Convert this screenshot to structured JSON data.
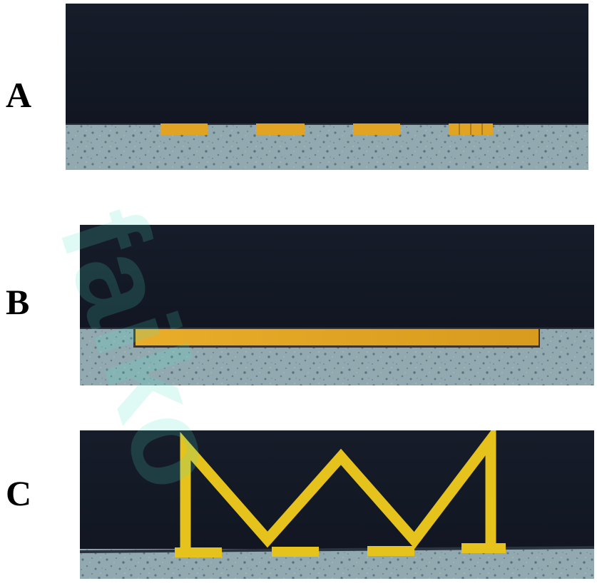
{
  "panels": [
    {
      "letter": "A"
    },
    {
      "letter": "B"
    },
    {
      "letter": "C"
    }
  ],
  "colors": {
    "dark_region": "#141a26",
    "substrate": "#8fa6ad",
    "substrate_speckle": "#4f6f7c",
    "gold": "#e0a51e",
    "gold_bright": "#e6c21c",
    "background": "#ffffff"
  },
  "icons": [
    "panel-a-image",
    "panel-b-image",
    "panel-c-image"
  ]
}
